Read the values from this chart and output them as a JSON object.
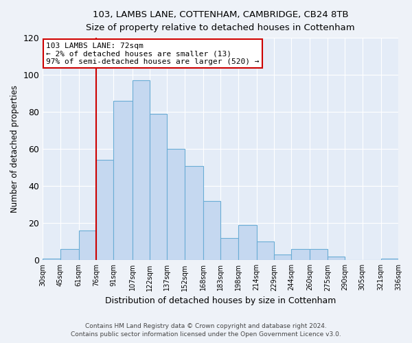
{
  "title1": "103, LAMBS LANE, COTTENHAM, CAMBRIDGE, CB24 8TB",
  "title2": "Size of property relative to detached houses in Cottenham",
  "xlabel": "Distribution of detached houses by size in Cottenham",
  "ylabel": "Number of detached properties",
  "bar_edges": [
    30,
    45,
    61,
    76,
    91,
    107,
    122,
    137,
    152,
    168,
    183,
    198,
    214,
    229,
    244,
    260,
    275,
    290,
    305,
    321,
    336
  ],
  "bar_heights": [
    1,
    6,
    16,
    54,
    86,
    97,
    79,
    60,
    51,
    32,
    12,
    19,
    10,
    3,
    6,
    6,
    2,
    0,
    0,
    1
  ],
  "bar_color": "#c5d8f0",
  "bar_edge_color": "#6aadd5",
  "vline_x": 76,
  "vline_color": "#cc0000",
  "ylim": [
    0,
    120
  ],
  "yticks": [
    0,
    20,
    40,
    60,
    80,
    100,
    120
  ],
  "xtick_labels": [
    "30sqm",
    "45sqm",
    "61sqm",
    "76sqm",
    "91sqm",
    "107sqm",
    "122sqm",
    "137sqm",
    "152sqm",
    "168sqm",
    "183sqm",
    "198sqm",
    "214sqm",
    "229sqm",
    "244sqm",
    "260sqm",
    "275sqm",
    "290sqm",
    "305sqm",
    "321sqm",
    "336sqm"
  ],
  "annotation_title": "103 LAMBS LANE: 72sqm",
  "annotation_line1": "← 2% of detached houses are smaller (13)",
  "annotation_line2": "97% of semi-detached houses are larger (520) →",
  "annotation_box_color": "#cc0000",
  "footer1": "Contains HM Land Registry data © Crown copyright and database right 2024.",
  "footer2": "Contains public sector information licensed under the Open Government Licence v3.0.",
  "background_color": "#eef2f8",
  "plot_bg_color": "#e4ecf7"
}
